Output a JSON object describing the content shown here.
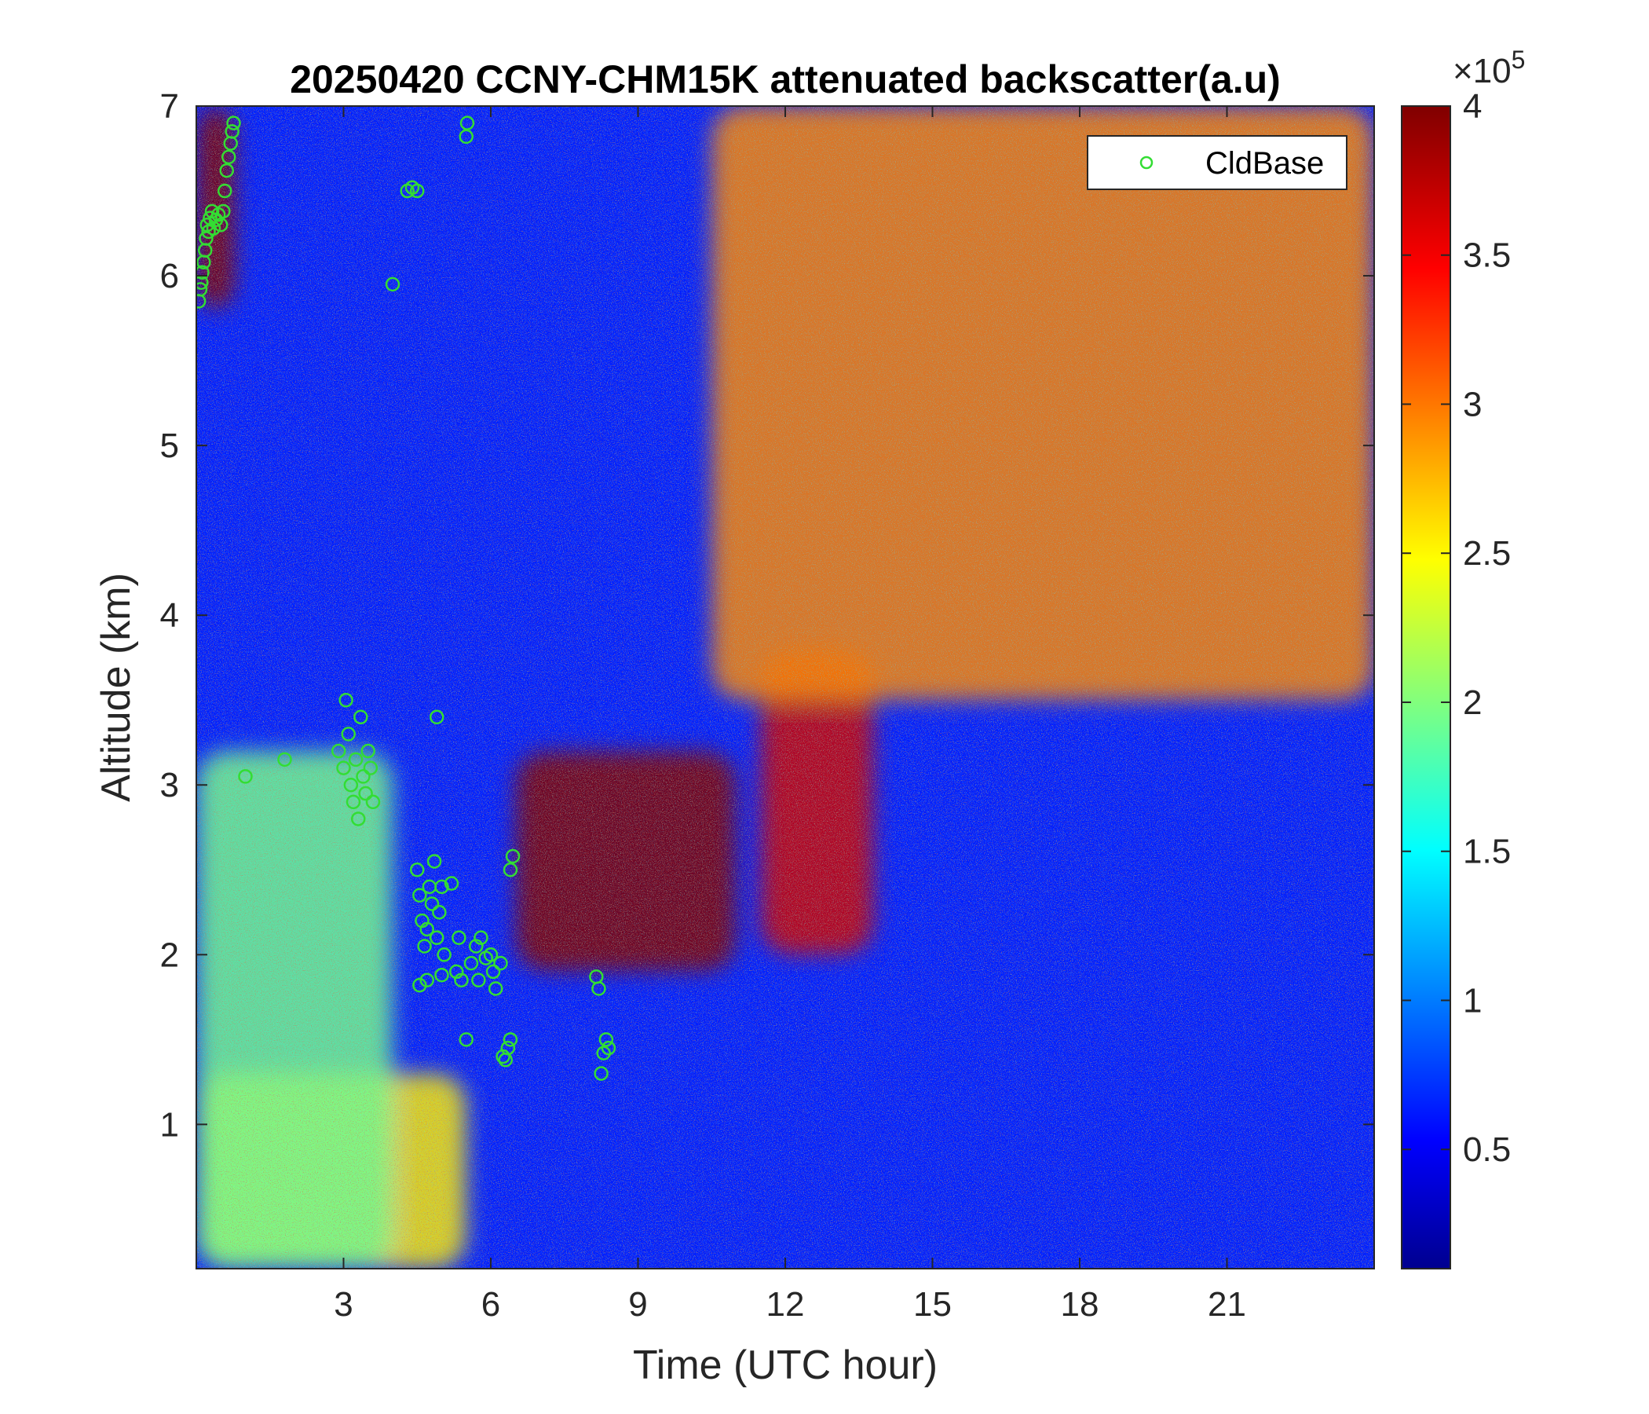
{
  "chart_data": {
    "type": "heatmap",
    "title": "20250420 CCNY-CHM15K attenuated backscatter(a.u)",
    "xlabel": "Time (UTC hour)",
    "ylabel": "Altitude (km)",
    "xlim": [
      0,
      24
    ],
    "ylim": [
      0.15,
      7
    ],
    "xticks": [
      3,
      6,
      9,
      12,
      15,
      18,
      21
    ],
    "xtick_labels": [
      "3",
      "6",
      "9",
      "12",
      "15",
      "18",
      "21"
    ],
    "yticks": [
      1,
      2,
      3,
      4,
      5,
      6,
      7
    ],
    "ytick_labels": [
      "1",
      "2",
      "3",
      "4",
      "5",
      "6",
      "7"
    ],
    "colorbar": {
      "colormap": "jet",
      "clim": [
        0.1,
        4.0
      ],
      "ticks": [
        0.5,
        1,
        1.5,
        2,
        2.5,
        3,
        3.5,
        4
      ],
      "tick_labels": [
        "0.5",
        "1",
        "1.5",
        "2",
        "2.5",
        "3",
        "3.5",
        "4"
      ],
      "exponent_base": "×10",
      "exponent_power": "5"
    },
    "legend": {
      "location": "top-right",
      "entries": [
        "CldBase"
      ]
    },
    "marker_color": "#33dd33",
    "regions": [
      {
        "feature": "high signal upper left",
        "x": [
          0,
          0.8
        ],
        "y": [
          5.8,
          7
        ],
        "level": 4.0
      },
      {
        "feature": "near-surface layer",
        "x": [
          0,
          5.5
        ],
        "y": [
          0.15,
          1.3
        ],
        "level": 2.6
      },
      {
        "feature": "aerosol plume",
        "x": [
          0,
          4
        ],
        "y": [
          0.15,
          3.2
        ],
        "level": 2.0
      },
      {
        "feature": "cloud layer",
        "x": [
          6.5,
          11
        ],
        "y": [
          1.9,
          3.2
        ],
        "level": 4.0
      },
      {
        "feature": "elevated layer",
        "x": [
          11.5,
          13.8
        ],
        "y": [
          2.0,
          3.8
        ],
        "level": 3.7
      },
      {
        "feature": "noise region",
        "x": [
          10.5,
          24
        ],
        "y": [
          3.5,
          7
        ],
        "level": 3.0
      }
    ],
    "series": [
      {
        "name": "CldBase",
        "type": "scatter",
        "points": [
          [
            0.05,
            5.85
          ],
          [
            0.08,
            5.92
          ],
          [
            0.1,
            5.96
          ],
          [
            0.12,
            6.02
          ],
          [
            0.15,
            6.08
          ],
          [
            0.18,
            6.15
          ],
          [
            0.2,
            6.22
          ],
          [
            0.22,
            6.3
          ],
          [
            0.25,
            6.26
          ],
          [
            0.28,
            6.34
          ],
          [
            0.32,
            6.38
          ],
          [
            0.35,
            6.28
          ],
          [
            0.4,
            6.33
          ],
          [
            0.45,
            6.36
          ],
          [
            0.5,
            6.3
          ],
          [
            0.55,
            6.38
          ],
          [
            0.58,
            6.5
          ],
          [
            0.62,
            6.62
          ],
          [
            0.66,
            6.7
          ],
          [
            0.7,
            6.78
          ],
          [
            0.73,
            6.85
          ],
          [
            0.76,
            6.9
          ],
          [
            1.0,
            3.05
          ],
          [
            1.8,
            3.15
          ],
          [
            2.9,
            3.2
          ],
          [
            3.0,
            3.1
          ],
          [
            3.05,
            3.5
          ],
          [
            3.1,
            3.3
          ],
          [
            3.15,
            3.0
          ],
          [
            3.2,
            2.9
          ],
          [
            3.25,
            3.15
          ],
          [
            3.3,
            2.8
          ],
          [
            3.35,
            3.4
          ],
          [
            3.4,
            3.05
          ],
          [
            3.45,
            2.95
          ],
          [
            3.5,
            3.2
          ],
          [
            3.55,
            3.1
          ],
          [
            3.6,
            2.9
          ],
          [
            4.0,
            5.95
          ],
          [
            4.3,
            6.5
          ],
          [
            4.4,
            6.52
          ],
          [
            4.5,
            6.5
          ],
          [
            4.9,
            3.4
          ],
          [
            4.5,
            2.5
          ],
          [
            4.55,
            2.35
          ],
          [
            4.6,
            2.2
          ],
          [
            4.65,
            2.05
          ],
          [
            4.7,
            2.15
          ],
          [
            4.75,
            2.4
          ],
          [
            4.8,
            2.3
          ],
          [
            4.85,
            2.55
          ],
          [
            4.9,
            2.1
          ],
          [
            4.95,
            2.25
          ],
          [
            5.0,
            2.4
          ],
          [
            4.55,
            1.82
          ],
          [
            4.7,
            1.85
          ],
          [
            5.0,
            1.88
          ],
          [
            5.05,
            2.0
          ],
          [
            5.2,
            2.42
          ],
          [
            5.3,
            1.9
          ],
          [
            5.35,
            2.1
          ],
          [
            5.4,
            1.85
          ],
          [
            5.5,
            1.5
          ],
          [
            5.5,
            6.82
          ],
          [
            5.52,
            6.9
          ],
          [
            5.6,
            1.95
          ],
          [
            5.7,
            2.05
          ],
          [
            5.75,
            1.85
          ],
          [
            5.8,
            2.1
          ],
          [
            5.9,
            1.98
          ],
          [
            6.0,
            2.0
          ],
          [
            6.05,
            1.9
          ],
          [
            6.1,
            1.8
          ],
          [
            6.2,
            1.95
          ],
          [
            6.25,
            1.4
          ],
          [
            6.3,
            1.38
          ],
          [
            6.35,
            1.45
          ],
          [
            6.4,
            1.5
          ],
          [
            6.4,
            2.5
          ],
          [
            6.45,
            2.58
          ],
          [
            8.15,
            1.87
          ],
          [
            8.2,
            1.8
          ],
          [
            8.25,
            1.3
          ],
          [
            8.3,
            1.42
          ],
          [
            8.35,
            1.5
          ],
          [
            8.4,
            1.45
          ]
        ]
      }
    ]
  }
}
